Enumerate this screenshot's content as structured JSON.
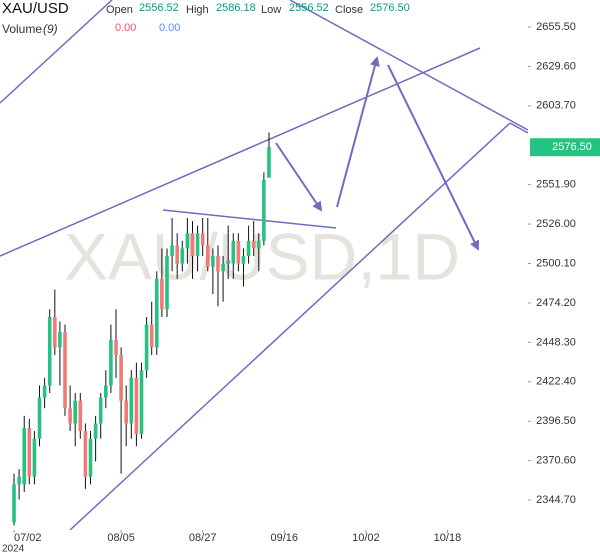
{
  "chart_data": {
    "type": "candlestick",
    "title": "XAU/USD",
    "watermark": "XAU/USD,1D",
    "legend": {
      "open_label": "Open",
      "open": "2556.52",
      "high_label": "High",
      "high": "2586.18",
      "low_label": "Low",
      "low": "2556.52",
      "close_label": "Close",
      "close": "2576.50"
    },
    "volume": {
      "label": "Volume",
      "length": "(9)",
      "values": [
        "0.00",
        "0.00"
      ],
      "colors": [
        "#f7525f",
        "#5b8def"
      ]
    },
    "up_color": "#26c281",
    "down_color": "#ef7a78",
    "x": [
      0,
      1,
      2,
      3,
      4,
      5,
      6,
      7,
      8,
      9,
      10,
      11,
      12,
      13,
      14,
      15,
      16,
      17,
      18,
      19,
      20,
      21,
      22,
      23,
      24,
      25,
      26,
      27,
      28,
      29,
      30,
      31,
      32,
      33,
      34,
      35,
      36,
      37,
      38,
      39,
      40,
      41,
      42,
      43,
      44,
      45,
      46,
      47,
      48,
      49,
      50
    ],
    "open": [
      2330,
      2355,
      2355,
      2392,
      2360,
      2385,
      2412,
      2420,
      2465,
      2445,
      2455,
      2405,
      2395,
      2410,
      2390,
      2360,
      2385,
      2395,
      2412,
      2420,
      2450,
      2440,
      2410,
      2395,
      2425,
      2388,
      2430,
      2460,
      2445,
      2490,
      2470,
      2505,
      2512,
      2500,
      2510,
      2520,
      2505,
      2520,
      2512,
      2498,
      2505,
      2495,
      2500,
      2500,
      2515,
      2500,
      2505,
      2515,
      2510,
      2515,
      2556.52
    ],
    "high": [
      2362,
      2365,
      2400,
      2398,
      2390,
      2420,
      2425,
      2470,
      2483,
      2462,
      2460,
      2420,
      2415,
      2415,
      2395,
      2390,
      2400,
      2415,
      2430,
      2460,
      2470,
      2445,
      2420,
      2430,
      2435,
      2435,
      2465,
      2475,
      2495,
      2510,
      2510,
      2530,
      2520,
      2515,
      2530,
      2528,
      2525,
      2530,
      2530,
      2510,
      2512,
      2505,
      2525,
      2520,
      2520,
      2510,
      2525,
      2528,
      2520,
      2560,
      2586.18
    ],
    "low": [
      2328,
      2345,
      2350,
      2355,
      2355,
      2380,
      2405,
      2415,
      2440,
      2420,
      2400,
      2390,
      2380,
      2385,
      2352,
      2355,
      2370,
      2385,
      2405,
      2415,
      2425,
      2362,
      2380,
      2385,
      2380,
      2385,
      2425,
      2440,
      2440,
      2465,
      2465,
      2495,
      2490,
      2495,
      2500,
      2490,
      2495,
      2505,
      2495,
      2480,
      2472,
      2475,
      2490,
      2490,
      2495,
      2485,
      2500,
      2505,
      2495,
      2512,
      2556.52
    ],
    "close": [
      2355,
      2360,
      2392,
      2360,
      2385,
      2412,
      2420,
      2465,
      2445,
      2455,
      2405,
      2395,
      2410,
      2390,
      2360,
      2385,
      2395,
      2412,
      2420,
      2450,
      2440,
      2410,
      2395,
      2425,
      2388,
      2430,
      2460,
      2445,
      2490,
      2470,
      2505,
      2512,
      2500,
      2510,
      2520,
      2505,
      2520,
      2512,
      2498,
      2505,
      2495,
      2500,
      2502,
      2515,
      2500,
      2505,
      2515,
      2510,
      2515,
      2555,
      2576.5
    ],
    "last_price_label": "2576.50",
    "xlim": [
      -2.75,
      100.8
    ],
    "xticks": [
      {
        "value": 0,
        "label": "07/02"
      },
      {
        "value": 21,
        "label": "08/05"
      },
      {
        "value": 37,
        "label": "08/27"
      },
      {
        "value": 53,
        "label": "09/16"
      },
      {
        "value": 69,
        "label": "10/02"
      },
      {
        "value": 85,
        "label": "10/18"
      }
    ],
    "year_label": "2024",
    "ylim": [
      2325,
      2673.24
    ],
    "yticks": [
      {
        "value": 2655.5,
        "label": "2655.50"
      },
      {
        "value": 2629.6,
        "label": "2629.60"
      },
      {
        "value": 2603.7,
        "label": "2603.70"
      },
      {
        "value": 2551.9,
        "label": "2551.90"
      },
      {
        "value": 2526,
        "label": "2526.00"
      },
      {
        "value": 2500.1,
        "label": "2500.10"
      },
      {
        "value": 2474.2,
        "label": "2474.20"
      },
      {
        "value": 2448.3,
        "label": "2448.30"
      },
      {
        "value": 2422.4,
        "label": "2422.40"
      },
      {
        "value": 2396.5,
        "label": "2396.50"
      },
      {
        "value": 2370.6,
        "label": "2370.60"
      },
      {
        "value": 2344.7,
        "label": "2344.70"
      }
    ]
  }
}
